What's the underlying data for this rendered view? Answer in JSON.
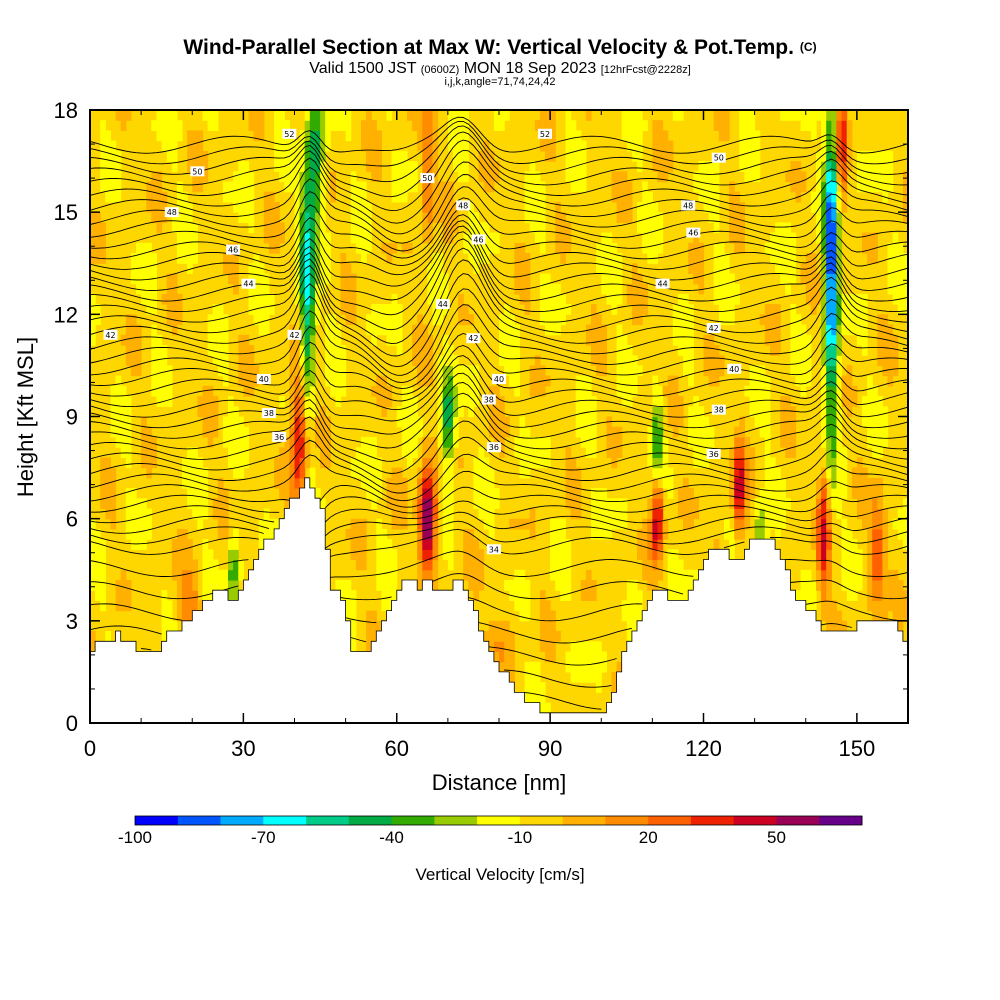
{
  "header": {
    "title": "Wind-Parallel Section at Max W: Vertical Velocity & Pot.Temp.",
    "copyright": "(C)",
    "valid_prefix": "Valid 1500 JST",
    "valid_utc": "(0600Z)",
    "valid_date": "MON 18 Sep 2023",
    "forecast_info": "[12hrFcst@2228z]",
    "indices": "i,j,k,angle=71,74,24,42"
  },
  "colors": {
    "terrain": "#ffffff",
    "background": "#ffffff",
    "contour": "#000000"
  },
  "chart_data": {
    "type": "heatmap",
    "title": "Wind-Parallel Section at Max W: Vertical Velocity & Pot.Temp.",
    "xlabel": "Distance [nm]",
    "ylabel": "Height [Kft MSL]",
    "xlim": [
      0,
      160
    ],
    "ylim": [
      0,
      18
    ],
    "x_ticks": [
      0,
      30,
      60,
      90,
      120,
      150
    ],
    "y_ticks": [
      0,
      3,
      6,
      9,
      12,
      15,
      18
    ],
    "colorbar": {
      "title": "Vertical Velocity [cm/s]",
      "labels": [
        "-100",
        "-70",
        "-40",
        "-10",
        "20",
        "50"
      ],
      "label_values": [
        -100,
        -70,
        -40,
        -10,
        20,
        50
      ],
      "min": -100,
      "step": 10,
      "colors": [
        "#0000ff",
        "#0055ff",
        "#00aaff",
        "#00ffff",
        "#00cc88",
        "#00aa44",
        "#33aa00",
        "#99cc00",
        "#ffff00",
        "#ffd700",
        "#ffb000",
        "#ff8c00",
        "#ff6000",
        "#ee2200",
        "#cc0022",
        "#990055",
        "#660088"
      ]
    },
    "terrain_profile": {
      "x": [
        0,
        5,
        8,
        12,
        15,
        20,
        25,
        28,
        31,
        33,
        36,
        39,
        42,
        45,
        47,
        49,
        51,
        53,
        55,
        57,
        60,
        62,
        64,
        66,
        68,
        70,
        72,
        74,
        76,
        78,
        80,
        83,
        86,
        88,
        90,
        93,
        96,
        100,
        102,
        104,
        107,
        110,
        113,
        116,
        118,
        120,
        123,
        126,
        129,
        132,
        135,
        138,
        141,
        143,
        145,
        148,
        151,
        154,
        157,
        160
      ],
      "height_kft": [
        2.2,
        2.6,
        2.3,
        2.0,
        2.6,
        3.2,
        3.9,
        3.6,
        4.5,
        5.2,
        5.7,
        6.5,
        7.2,
        6.2,
        4.0,
        3.5,
        2.2,
        2.0,
        2.4,
        3.0,
        3.9,
        4.2,
        3.9,
        4.2,
        3.8,
        3.9,
        4.3,
        3.5,
        2.8,
        2.2,
        1.6,
        1.0,
        0.6,
        0.35,
        0.35,
        0.35,
        0.35,
        0.35,
        1.0,
        2.0,
        3.0,
        3.9,
        3.7,
        3.5,
        4.2,
        4.9,
        5.2,
        4.7,
        5.4,
        5.5,
        4.8,
        3.6,
        3.2,
        2.8,
        2.6,
        2.7,
        3.0,
        3.0,
        3.0,
        2.3
      ]
    },
    "vertical_velocity_cells": [
      {
        "x": 41,
        "y": 8.5,
        "w": 55,
        "sx": 1.6,
        "sy": 2.2
      },
      {
        "x": 42.5,
        "y": 12.5,
        "w": -60,
        "sx": 1.4,
        "sy": 3.5
      },
      {
        "x": 44,
        "y": 16.5,
        "w": -40,
        "sx": 1.6,
        "sy": 2.0
      },
      {
        "x": 66,
        "y": 6.0,
        "w": 75,
        "sx": 1.6,
        "sy": 1.5
      },
      {
        "x": 70,
        "y": 8.8,
        "w": -40,
        "sx": 1.4,
        "sy": 1.5
      },
      {
        "x": 66,
        "y": 16.5,
        "w": 30,
        "sx": 1.3,
        "sy": 2.5
      },
      {
        "x": 111,
        "y": 6.0,
        "w": 55,
        "sx": 1.2,
        "sy": 1.2
      },
      {
        "x": 111,
        "y": 8.5,
        "w": -35,
        "sx": 1.0,
        "sy": 1.2
      },
      {
        "x": 127,
        "y": 6.8,
        "w": 55,
        "sx": 1.2,
        "sy": 1.4
      },
      {
        "x": 145,
        "y": 13.5,
        "w": -85,
        "sx": 1.3,
        "sy": 4.5
      },
      {
        "x": 143.5,
        "y": 5.5,
        "w": 45,
        "sx": 1.2,
        "sy": 1.8
      },
      {
        "x": 147,
        "y": 17.0,
        "w": 45,
        "sx": 1.1,
        "sy": 1.5
      },
      {
        "x": 154,
        "y": 5.0,
        "w": 35,
        "sx": 1.6,
        "sy": 1.6
      },
      {
        "x": 19,
        "y": 3.5,
        "w": 22,
        "sx": 2.5,
        "sy": 0.9
      },
      {
        "x": 80,
        "y": 2.5,
        "w": 15,
        "sx": 2.5,
        "sy": 1.0
      },
      {
        "x": 123,
        "y": 4.0,
        "w": 25,
        "sx": 1.5,
        "sy": 1.2
      },
      {
        "x": 131,
        "y": 5.5,
        "w": -25,
        "sx": 1.2,
        "sy": 1.0
      },
      {
        "x": 28,
        "y": 4.5,
        "w": -30,
        "sx": 1.0,
        "sy": 1.0
      }
    ],
    "theta_contours": {
      "base_values": [
        30,
        30.5,
        31,
        31.5,
        32,
        32.5,
        33,
        33.5,
        34,
        34.5,
        35,
        35.5,
        36,
        36.5,
        37,
        37.5,
        38,
        38.5,
        39,
        39.5,
        40,
        40.5,
        41,
        41.5,
        42,
        42.5,
        43,
        43.5,
        44,
        44.5,
        45,
        45.5,
        46,
        46.5,
        47,
        47.5,
        48,
        48.5,
        49,
        49.5,
        50,
        50.5,
        51,
        51.5,
        52,
        52.5,
        53
      ]
    },
    "contour_labels": [
      {
        "text": "52",
        "x": 39,
        "y": 17.3
      },
      {
        "text": "52",
        "x": 89,
        "y": 17.3
      },
      {
        "text": "50",
        "x": 21,
        "y": 16.2
      },
      {
        "text": "50",
        "x": 66,
        "y": 16.0
      },
      {
        "text": "50",
        "x": 123,
        "y": 16.6
      },
      {
        "text": "48",
        "x": 16,
        "y": 15.0
      },
      {
        "text": "48",
        "x": 73,
        "y": 15.2
      },
      {
        "text": "48",
        "x": 117,
        "y": 15.2
      },
      {
        "text": "46",
        "x": 28,
        "y": 13.9
      },
      {
        "text": "46",
        "x": 76,
        "y": 14.2
      },
      {
        "text": "46",
        "x": 118,
        "y": 14.4
      },
      {
        "text": "44",
        "x": 31,
        "y": 12.9
      },
      {
        "text": "44",
        "x": 69,
        "y": 12.3
      },
      {
        "text": "44",
        "x": 112,
        "y": 12.9
      },
      {
        "text": "42",
        "x": 4,
        "y": 11.4
      },
      {
        "text": "42",
        "x": 40,
        "y": 11.4
      },
      {
        "text": "42",
        "x": 75,
        "y": 11.3
      },
      {
        "text": "42",
        "x": 122,
        "y": 11.6
      },
      {
        "text": "40",
        "x": 34,
        "y": 10.1
      },
      {
        "text": "40",
        "x": 80,
        "y": 10.1
      },
      {
        "text": "40",
        "x": 126,
        "y": 10.4
      },
      {
        "text": "38",
        "x": 35,
        "y": 9.1
      },
      {
        "text": "38",
        "x": 78,
        "y": 9.5
      },
      {
        "text": "38",
        "x": 123,
        "y": 9.2
      },
      {
        "text": "36",
        "x": 37,
        "y": 8.4
      },
      {
        "text": "36",
        "x": 79,
        "y": 8.1
      },
      {
        "text": "36",
        "x": 122,
        "y": 7.9
      },
      {
        "text": "34",
        "x": 79,
        "y": 5.1
      }
    ]
  }
}
